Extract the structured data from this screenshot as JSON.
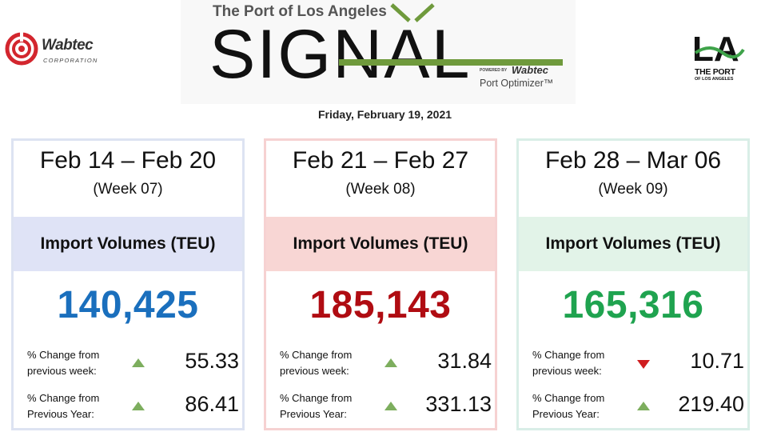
{
  "header": {
    "left_logo": {
      "name": "Wabtec",
      "tagline": "CORPORATION"
    },
    "signal": {
      "port_line": "The Port of Los Angeles",
      "word": "SIGNAL",
      "powered_by": "POWERED BY",
      "brand": "Wabtec",
      "product": "Port Optimizer™"
    },
    "right_logo": {
      "mark": "LA",
      "line1": "THE PORT",
      "line2": "OF LOS ANGELES"
    },
    "date": "Friday, February 19, 2021"
  },
  "colors": {
    "week07_accent": "#1a6fbd",
    "week08_accent": "#b00c12",
    "week09_accent": "#1fa34f",
    "arrow_up": "#7dae5e",
    "arrow_down": "#cf1d1f",
    "signal_green": "#6f9a3c"
  },
  "cards": [
    {
      "dates": "Feb 14 – Feb 20",
      "week": "(Week 07)",
      "metric": "Import Volumes (TEU)",
      "volume": "140,425",
      "week_change_label": [
        "% Change from",
        "previous week:"
      ],
      "week_change_icon": "triangle-up-icon",
      "week_change_value": "55.33",
      "year_change_label": [
        "% Change from",
        "Previous Year:"
      ],
      "year_change_icon": "triangle-up-icon",
      "year_change_value": "86.41"
    },
    {
      "dates": "Feb 21 – Feb 27",
      "week": "(Week 08)",
      "metric": "Import Volumes (TEU)",
      "volume": "185,143",
      "week_change_label": [
        "% Change from",
        "previous week:"
      ],
      "week_change_icon": "triangle-up-icon",
      "week_change_value": "31.84",
      "year_change_label": [
        "% Change from",
        "Previous Year:"
      ],
      "year_change_icon": "triangle-up-icon",
      "year_change_value": "331.13"
    },
    {
      "dates": "Feb 28 – Mar 06",
      "week": "(Week 09)",
      "metric": "Import Volumes (TEU)",
      "volume": "165,316",
      "week_change_label": [
        "% Change from",
        "previous week:"
      ],
      "week_change_icon": "triangle-down-icon",
      "week_change_value": "10.71",
      "year_change_label": [
        "% Change from",
        "Previous Year:"
      ],
      "year_change_icon": "triangle-up-icon",
      "year_change_value": "219.40"
    }
  ]
}
